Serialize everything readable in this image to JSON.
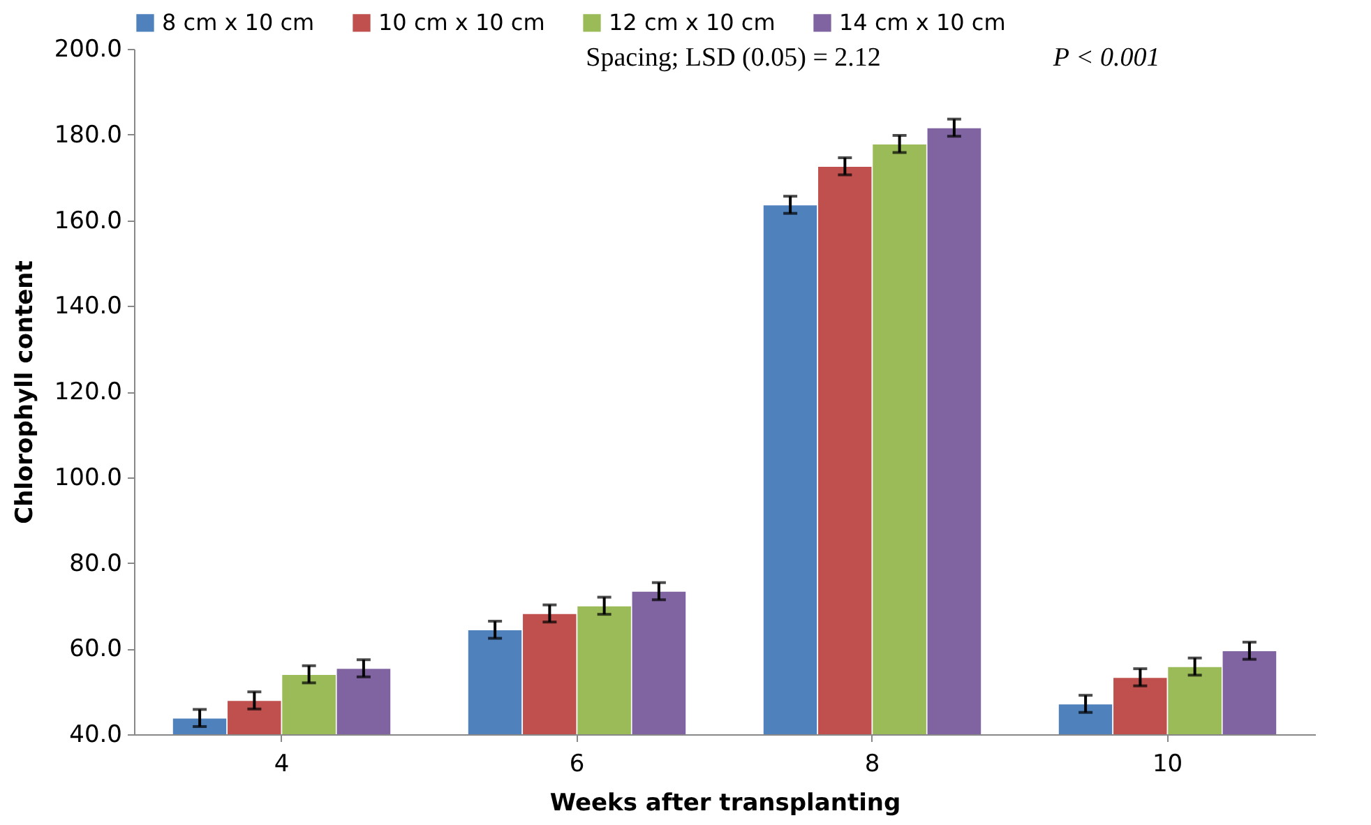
{
  "chart_data": {
    "type": "bar",
    "xlabel": "Weeks after transplanting",
    "ylabel": "Chlorophyll content",
    "categories": [
      "4",
      "6",
      "8",
      "10"
    ],
    "series": [
      {
        "name": "8 cm x 10 cm",
        "color": "#4f81bd",
        "values": [
          43.8,
          64.4,
          163.6,
          47.1
        ],
        "errors": [
          2,
          2,
          2,
          2
        ]
      },
      {
        "name": "10 cm x 10 cm",
        "color": "#c0504d",
        "values": [
          47.9,
          68.2,
          172.6,
          53.3
        ],
        "errors": [
          2,
          2,
          2,
          2
        ]
      },
      {
        "name": "12 cm x 10 cm",
        "color": "#9bbb59",
        "values": [
          54.0,
          70.0,
          177.8,
          55.8
        ],
        "errors": [
          2,
          2,
          2,
          2
        ]
      },
      {
        "name": "14 cm x 10 cm",
        "color": "#8064a2",
        "values": [
          55.4,
          73.4,
          181.6,
          59.5
        ],
        "errors": [
          2,
          2,
          2,
          2
        ]
      }
    ],
    "ylim": [
      40,
      200
    ],
    "yticks": [
      {
        "value": 40,
        "label": "40.0"
      },
      {
        "value": 60,
        "label": "60.0"
      },
      {
        "value": 80,
        "label": "80.0"
      },
      {
        "value": 100,
        "label": "100.0"
      },
      {
        "value": 120,
        "label": "120.0"
      },
      {
        "value": 140,
        "label": "140.0"
      },
      {
        "value": 160,
        "label": "160.0"
      },
      {
        "value": 180,
        "label": "180.0"
      },
      {
        "value": 200,
        "label": "200.0"
      }
    ],
    "grid": false,
    "legend": "top",
    "annotations": [
      "Spacing; LSD (0.05) = 2.12",
      "P < 0.001"
    ]
  }
}
